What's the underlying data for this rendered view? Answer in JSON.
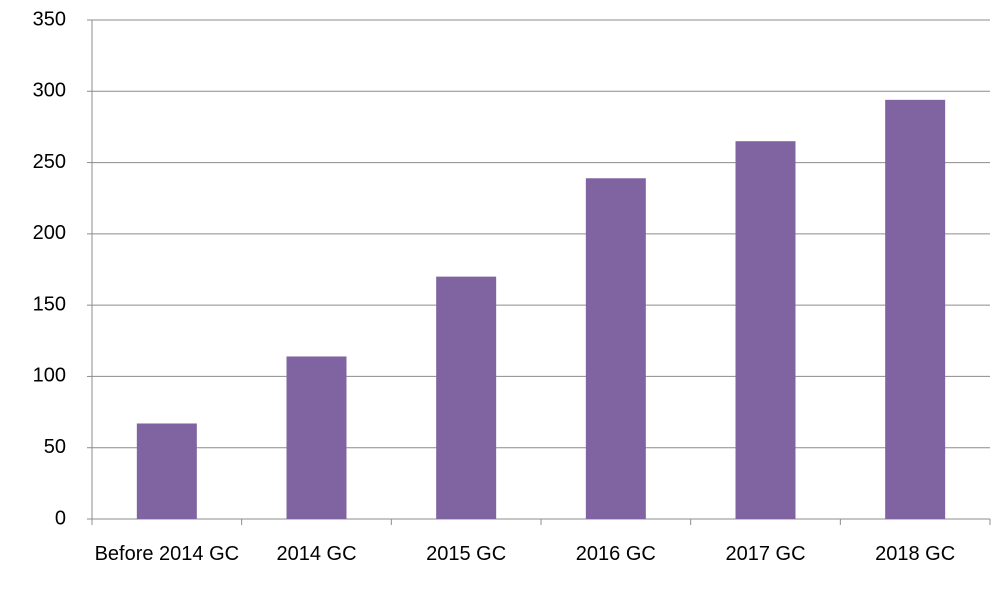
{
  "chart_data": {
    "type": "bar",
    "categories": [
      "Before 2014 GC",
      "2014 GC",
      "2015 GC",
      "2016 GC",
      "2017 GC",
      "2018 GC"
    ],
    "values": [
      67,
      114,
      170,
      239,
      265,
      294
    ],
    "color": "#8064a2",
    "ylim": [
      0,
      350
    ],
    "yticks": [
      0,
      50,
      100,
      150,
      200,
      250,
      300,
      350
    ],
    "grid": true
  }
}
